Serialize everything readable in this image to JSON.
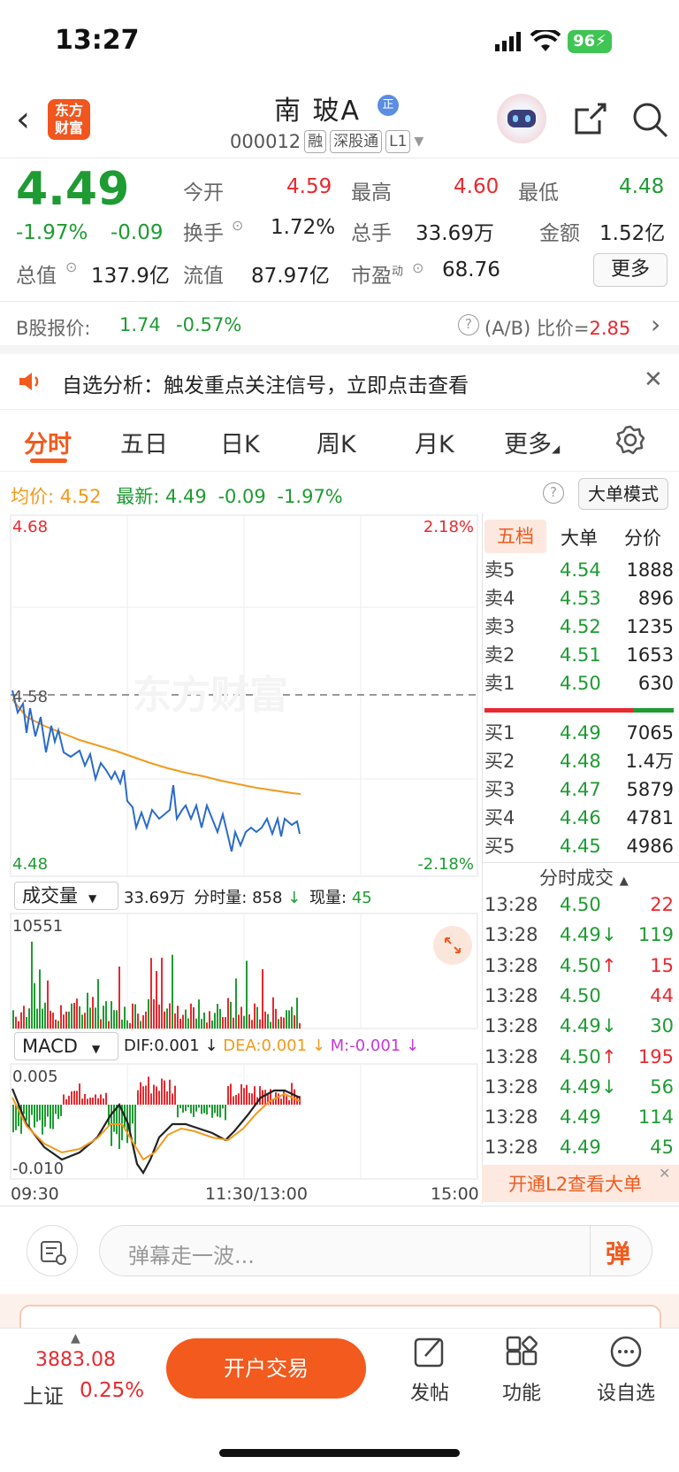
{
  "status_bar": {
    "time": "13:27",
    "battery": "96"
  },
  "header": {
    "stock_name": "南 玻A",
    "badge_zheng": "正",
    "code": "000012",
    "badges": [
      "融",
      "深股通",
      "L1"
    ],
    "logo_text": "东方财富"
  },
  "quote": {
    "price": "4.49",
    "change_pct": "-1.97%",
    "change": "-0.09",
    "fields": [
      {
        "label": "今开",
        "value": "4.59"
      },
      {
        "label": "最高",
        "value": "4.60"
      },
      {
        "label": "最低",
        "value": "4.48"
      },
      {
        "label": "换手",
        "value": "1.72%"
      },
      {
        "label": "总手",
        "value": "33.69万"
      },
      {
        "label": "金额",
        "value": "1.52亿"
      },
      {
        "label": "总值",
        "value": "137.9亿"
      },
      {
        "label": "流值",
        "value": "87.97亿"
      },
      {
        "label": "市盈",
        "sup": "动",
        "value": "68.76"
      }
    ],
    "more_label": "更多"
  },
  "b_share": {
    "label": "B股报价:",
    "price": "1.74",
    "pct": "-0.57%",
    "ratio_label": "(A/B) 比价=",
    "ratio": "2.85"
  },
  "notice": {
    "text": "自选分析：触发重点关注信号，立即点击查看"
  },
  "tabs": [
    "分时",
    "五日",
    "日K",
    "周K",
    "月K",
    "更多"
  ],
  "chart_header": {
    "avg_label": "均价:",
    "avg": "4.52",
    "latest_label": "最新:",
    "latest": "4.49",
    "chg": "-0.09",
    "pct": "-1.97%",
    "mode_button": "大单模式"
  },
  "price_chart": {
    "top_price": "4.68",
    "mid_price": "4.58",
    "bottom_price": "4.48",
    "top_pct": "2.18%",
    "bottom_pct": "-2.18%",
    "watermark": "东方财富"
  },
  "volume_header": {
    "selector": "成交量",
    "total": "33.69万",
    "tick_label": "分时量:",
    "tick": "858",
    "now_label": "现量:",
    "now": "45",
    "max": "10551"
  },
  "macd_header": {
    "selector": "MACD",
    "dif": "DIF:0.001",
    "dea": "DEA:0.001",
    "m": "M:-0.001",
    "top": "0.005",
    "bottom": "-0.010"
  },
  "time_axis": [
    "09:30",
    "11:30/13:00",
    "15:00"
  ],
  "orderbook": {
    "tabs": [
      "五档",
      "大单",
      "分价"
    ],
    "asks": [
      {
        "label": "卖5",
        "price": "4.54",
        "vol": "1888"
      },
      {
        "label": "卖4",
        "price": "4.53",
        "vol": "896"
      },
      {
        "label": "卖3",
        "price": "4.52",
        "vol": "1235"
      },
      {
        "label": "卖2",
        "price": "4.51",
        "vol": "1653"
      },
      {
        "label": "卖1",
        "price": "4.50",
        "vol": "630"
      }
    ],
    "bids": [
      {
        "label": "买1",
        "price": "4.49",
        "vol": "7065"
      },
      {
        "label": "买2",
        "price": "4.48",
        "vol": "1.4万"
      },
      {
        "label": "买3",
        "price": "4.47",
        "vol": "5879"
      },
      {
        "label": "买4",
        "price": "4.46",
        "vol": "4781"
      },
      {
        "label": "买5",
        "price": "4.45",
        "vol": "4986"
      }
    ]
  },
  "trades": {
    "title": "分时成交",
    "rows": [
      {
        "time": "13:28",
        "price": "4.50",
        "arrow": "",
        "vol": "22",
        "color": "green",
        "vcolor": "red"
      },
      {
        "time": "13:28",
        "price": "4.49",
        "arrow": "↓",
        "vol": "119",
        "color": "green",
        "vcolor": "green"
      },
      {
        "time": "13:28",
        "price": "4.50",
        "arrow": "↑",
        "vol": "15",
        "color": "green",
        "vcolor": "red"
      },
      {
        "time": "13:28",
        "price": "4.50",
        "arrow": "",
        "vol": "44",
        "color": "green",
        "vcolor": "red"
      },
      {
        "time": "13:28",
        "price": "4.49",
        "arrow": "↓",
        "vol": "30",
        "color": "green",
        "vcolor": "green"
      },
      {
        "time": "13:28",
        "price": "4.50",
        "arrow": "↑",
        "vol": "195",
        "color": "green",
        "vcolor": "red"
      },
      {
        "time": "13:28",
        "price": "4.49",
        "arrow": "↓",
        "vol": "56",
        "color": "green",
        "vcolor": "green"
      },
      {
        "time": "13:28",
        "price": "4.49",
        "arrow": "",
        "vol": "114",
        "color": "green",
        "vcolor": "green"
      },
      {
        "time": "13:28",
        "price": "4.49",
        "arrow": "",
        "vol": "45",
        "color": "green",
        "vcolor": "green"
      }
    ],
    "l2_banner": "开通L2查看大单"
  },
  "danmu": {
    "placeholder": "弹幕走一波...",
    "button": "弹"
  },
  "bottom_bar": {
    "index_value": "3883.08",
    "index_name": "上证",
    "index_pct": "0.25%",
    "trade_button": "开户交易",
    "items": [
      "发帖",
      "功能",
      "设自选"
    ]
  },
  "colors": {
    "up": "#e8292f",
    "down": "#1e9b32",
    "accent": "#f25a1e",
    "avg_line": "#f29a1e",
    "price_line": "#2a6bc9"
  }
}
